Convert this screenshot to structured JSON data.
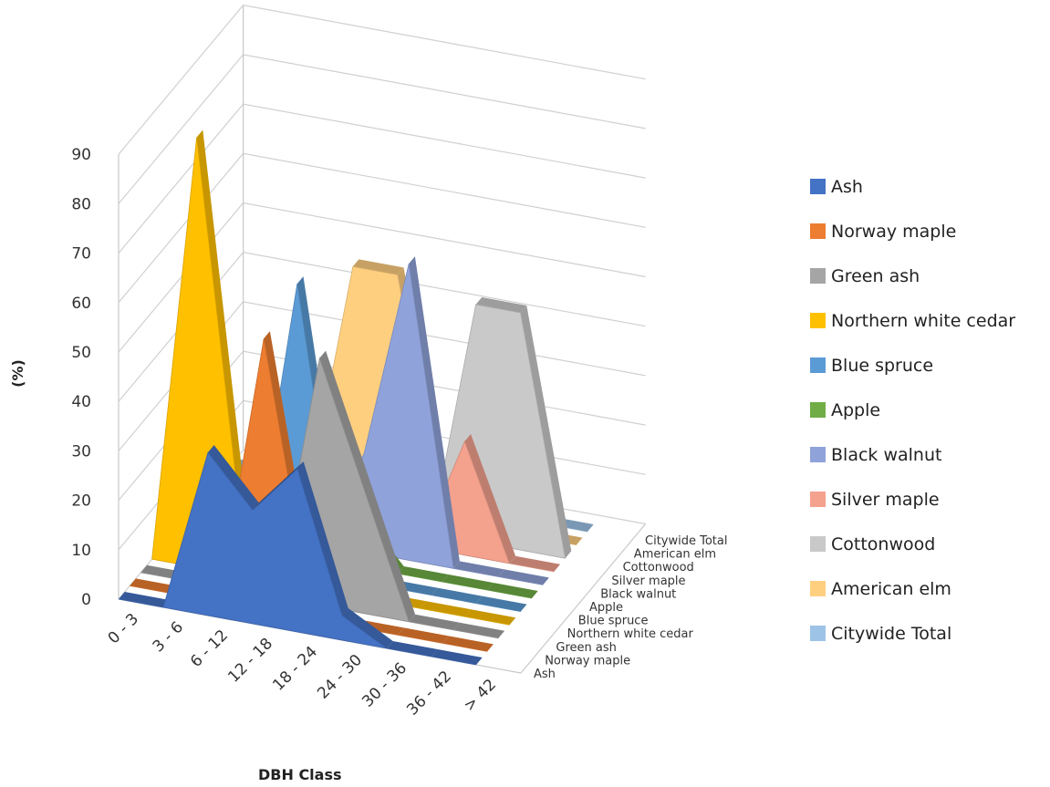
{
  "chart_data": {
    "type": "area",
    "xlabel": "DBH Class",
    "ylabel": "(%)",
    "ylim": [
      0,
      90
    ],
    "yticks": [
      0,
      10,
      20,
      30,
      40,
      50,
      60,
      70,
      80,
      90
    ],
    "categories": [
      "0 - 3",
      "3 - 6",
      "6 - 12",
      "12 - 18",
      "18 - 24",
      "24 - 30",
      "30 - 36",
      "36 - 42",
      "> 42"
    ],
    "grid": true,
    "legend": "right",
    "series": [
      {
        "name": "Ash",
        "color": "#4472C4",
        "values": [
          0,
          0,
          33,
          23,
          33,
          5,
          0,
          0,
          0
        ]
      },
      {
        "name": "Norway maple",
        "color": "#ED7D31",
        "values": [
          0,
          0,
          0,
          55,
          5,
          0,
          0,
          0,
          0
        ]
      },
      {
        "name": "Green ash",
        "color": "#A5A5A5",
        "values": [
          0,
          0,
          0,
          0,
          50,
          25,
          0,
          0,
          0
        ]
      },
      {
        "name": "Northern white cedar",
        "color": "#FFC000",
        "values": [
          0,
          87,
          10,
          0,
          0,
          0,
          0,
          0,
          0
        ]
      },
      {
        "name": "Blue spruce",
        "color": "#5B9BD5",
        "values": [
          0,
          0,
          0,
          58,
          0,
          0,
          0,
          0,
          0
        ]
      },
      {
        "name": "Apple",
        "color": "#70AD47",
        "values": [
          0,
          0,
          0,
          0,
          10,
          0,
          0,
          0,
          0
        ]
      },
      {
        "name": "Black walnut",
        "color": "#8FA2DA",
        "values": [
          0,
          0,
          0,
          0,
          20,
          60,
          0,
          0,
          0
        ]
      },
      {
        "name": "Silver maple",
        "color": "#F4A18E",
        "values": [
          0,
          0,
          0,
          23,
          0,
          0,
          23,
          0,
          0
        ]
      },
      {
        "name": "Cottonwood",
        "color": "#C9C9C9",
        "values": [
          0,
          0,
          0,
          0,
          0,
          0,
          48,
          48,
          0
        ]
      },
      {
        "name": "American elm",
        "color": "#FFCF80",
        "values": [
          0,
          0,
          0,
          48,
          48,
          0,
          0,
          0,
          0
        ]
      },
      {
        "name": "Citywide Total",
        "color": "#9DC3E6",
        "values": [
          0,
          0,
          0,
          0,
          0,
          0,
          0,
          0,
          0
        ]
      }
    ]
  }
}
